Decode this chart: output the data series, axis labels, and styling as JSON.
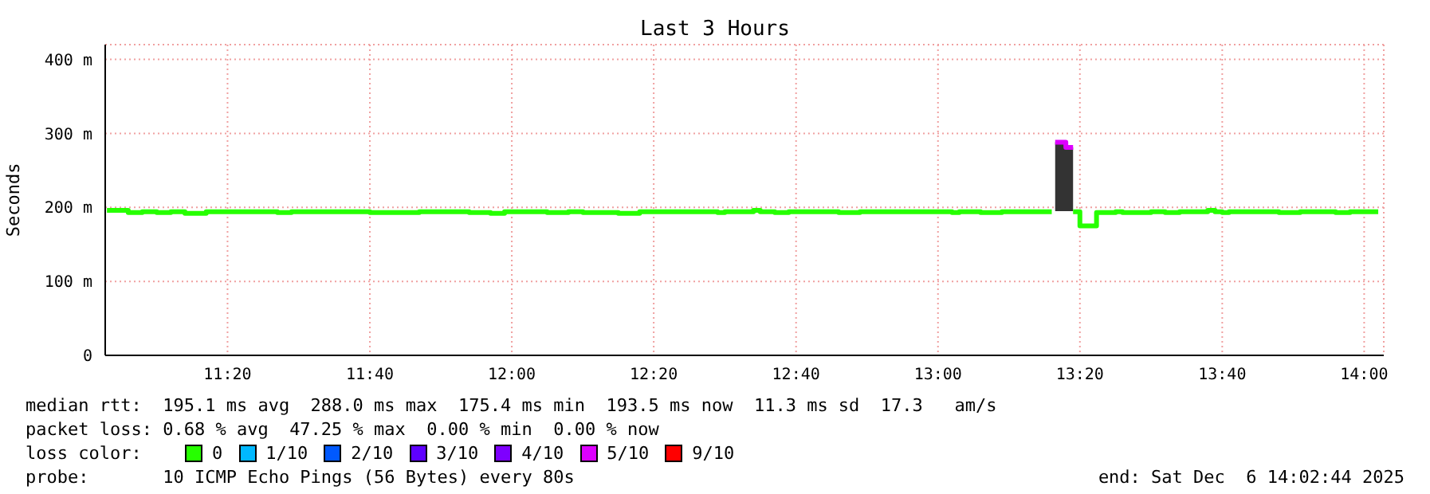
{
  "chart_data": {
    "type": "step",
    "title": "Last 3 Hours",
    "ylabel": "Seconds",
    "xlim": [
      11.046,
      14.046
    ],
    "xticks": [
      {
        "value": 11.333,
        "label": "11:20"
      },
      {
        "value": 11.667,
        "label": "11:40"
      },
      {
        "value": 12,
        "label": "12:00"
      },
      {
        "value": 12.333,
        "label": "12:20"
      },
      {
        "value": 12.667,
        "label": "12:40"
      },
      {
        "value": 13,
        "label": "13:00"
      },
      {
        "value": 13.333,
        "label": "13:20"
      },
      {
        "value": 13.667,
        "label": "13:40"
      },
      {
        "value": 14,
        "label": "14:00"
      }
    ],
    "ylim": [
      0,
      420
    ],
    "yticks": [
      0,
      {
        "value": 100,
        "label": "100 m"
      },
      {
        "value": 200,
        "label": "200 m"
      },
      {
        "value": 300,
        "label": "300 m"
      },
      {
        "value": 400,
        "label": "400 m"
      }
    ],
    "grid": true,
    "legend": "bottom",
    "legend_title": "loss color:",
    "marker": "none",
    "line_style": "solid",
    "series": [
      {
        "name": "0",
        "color": "#26ff00",
        "x": [
          11.05,
          11.1,
          11.133,
          11.167,
          11.2,
          11.233,
          11.283,
          11.45,
          11.483,
          11.667,
          11.783,
          11.9,
          11.95,
          11.983,
          12.083,
          12.133,
          12.167,
          12.25,
          12.3,
          12.483,
          12.5,
          12.567,
          12.583,
          12.617,
          12.65,
          12.767,
          12.817,
          13.033,
          13.05,
          13.1,
          13.15,
          13.267,
          13.275,
          13.317,
          13.333,
          13.372,
          13.417,
          13.433,
          13.5,
          13.533,
          13.567,
          13.633,
          13.65,
          13.667,
          13.683,
          13.8,
          13.85,
          13.933,
          13.967,
          14.033
        ],
        "values": [
          196,
          193,
          194,
          193,
          194,
          192,
          194,
          193,
          194,
          193,
          194,
          193,
          192,
          194,
          193,
          194,
          193,
          192,
          194,
          193,
          194,
          196,
          194,
          193,
          194,
          193,
          194,
          193,
          194,
          193,
          194,
          194,
          null,
          194,
          175,
          193,
          194,
          193,
          194,
          193,
          194,
          196,
          194,
          193,
          194,
          193,
          194,
          193,
          194,
          194
        ]
      },
      {
        "name": "1/10",
        "color": "#00b8ff"
      },
      {
        "name": "2/10",
        "color": "#0059ff"
      },
      {
        "name": "3/10",
        "color": "#5e00ff"
      },
      {
        "name": "4/10",
        "color": "#7e00ff"
      },
      {
        "name": "5/10",
        "color": "#dd00ff",
        "x": [
          13.275,
          13.3,
          13.317
        ],
        "values": [
          288,
          281,
          281
        ],
        "lower": [
          195,
          195,
          195
        ],
        "upper": [
          288,
          281,
          281
        ]
      },
      {
        "name": "9/10",
        "color": "#ff0000"
      }
    ],
    "annotations": [
      "median rtt:  195.1 ms avg  288.0 ms max  175.4 ms min  193.5 ms now  11.3 ms sd  17.3   am/s",
      "packet loss: 0.68 % avg  47.25 % max  0.00 % min  0.00 % now",
      "probe:       10 ICMP Echo Pings (56 Bytes) every 80s",
      "end: Sat Dec  6 14:02:44 2025"
    ]
  }
}
